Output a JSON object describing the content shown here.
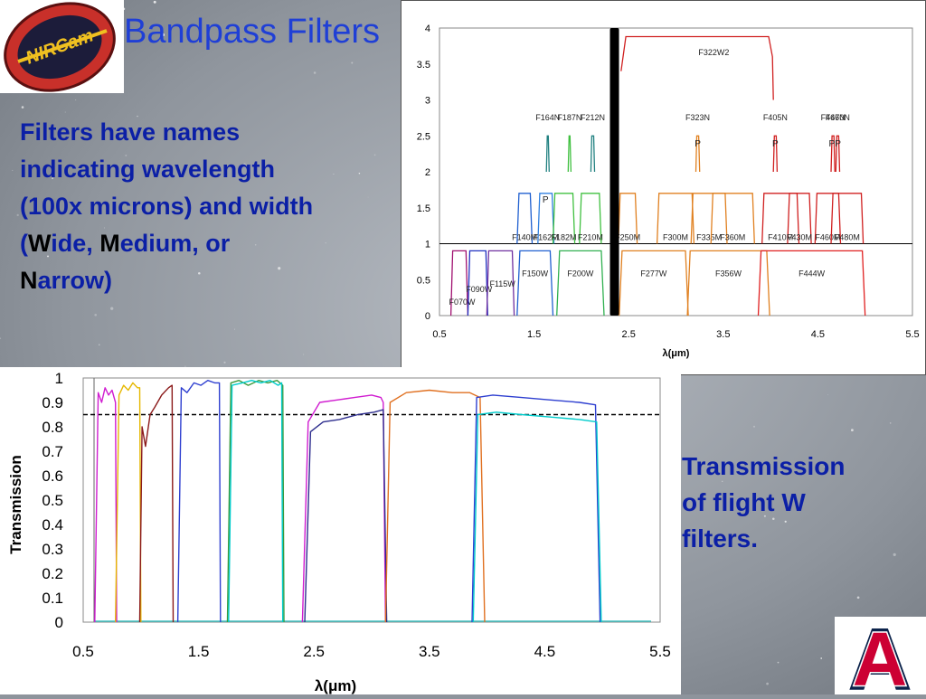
{
  "slide": {
    "title": "Bandpass Filters",
    "desc_lines": [
      "Filters have names",
      "indicating wavelength",
      "(100x microns) and width"
    ],
    "desc_w_key": "W",
    "desc_w_rest": "ide, ",
    "desc_m_key": "M",
    "desc_m_rest": "edium, or",
    "desc_n_key": "N",
    "desc_n_rest": "arrow)",
    "caption_lines": [
      "Transmission",
      "of flight W",
      "filters."
    ],
    "logo_text": "NIRCam",
    "ua_mark": "A"
  },
  "colors": {
    "title": "#1f3fd6",
    "text": "#0b1fa6",
    "ua_blue": "#0c234b",
    "ua_red": "#cc0033"
  },
  "chart_data": [
    {
      "type": "line",
      "title": "",
      "xlabel": "λ(μm)",
      "ylabel": "",
      "xlim": [
        0.5,
        5.5
      ],
      "ylim": [
        0,
        4
      ],
      "x_ticks": [
        "0.5",
        "1.5",
        "2.5",
        "3.5",
        "4.5",
        "5.5"
      ],
      "y_ticks": [
        "0",
        "0.5",
        "1",
        "1.5",
        "2",
        "2.5",
        "3",
        "3.5",
        "4"
      ],
      "reference_line_y": 1,
      "marker_x": 2.35,
      "series": [
        {
          "name": "F070W",
          "x": [
            0.62,
            0.64,
            0.78,
            0.8
          ],
          "y": [
            0,
            0.9,
            0.9,
            0
          ]
        },
        {
          "name": "F090W",
          "x": [
            0.8,
            0.82,
            0.99,
            1.01
          ],
          "y": [
            0,
            0.9,
            0.9,
            0
          ]
        },
        {
          "name": "F115W",
          "x": [
            1.0,
            1.02,
            1.27,
            1.29
          ],
          "y": [
            0,
            0.9,
            0.9,
            0
          ]
        },
        {
          "name": "F150W",
          "x": [
            1.32,
            1.35,
            1.67,
            1.7
          ],
          "y": [
            0,
            0.9,
            0.9,
            0
          ]
        },
        {
          "name": "F200W",
          "x": [
            1.74,
            1.77,
            2.21,
            2.24
          ],
          "y": [
            0,
            0.9,
            0.9,
            0
          ]
        },
        {
          "name": "F277W",
          "x": [
            2.4,
            2.43,
            3.1,
            3.13
          ],
          "y": [
            0,
            0.9,
            0.9,
            0
          ]
        },
        {
          "name": "F356W",
          "x": [
            3.12,
            3.15,
            3.96,
            3.99
          ],
          "y": [
            0,
            0.9,
            0.9,
            0
          ]
        },
        {
          "name": "F444W",
          "x": [
            3.87,
            3.9,
            4.97,
            5.0
          ],
          "y": [
            0,
            0.9,
            0.9,
            0
          ]
        },
        {
          "name": "F140M",
          "x": [
            1.32,
            1.34,
            1.46,
            1.48
          ],
          "y": [
            1,
            1.7,
            1.7,
            1
          ]
        },
        {
          "name": "F162M",
          "x": [
            1.54,
            1.56,
            1.69,
            1.71
          ],
          "y": [
            1,
            1.7,
            1.7,
            1
          ]
        },
        {
          "name": "F182M",
          "x": [
            1.7,
            1.72,
            1.91,
            1.93
          ],
          "y": [
            1,
            1.7,
            1.7,
            1
          ]
        },
        {
          "name": "F210M",
          "x": [
            1.98,
            2.0,
            2.19,
            2.21
          ],
          "y": [
            1,
            1.7,
            1.7,
            1
          ]
        },
        {
          "name": "F250M",
          "x": [
            2.39,
            2.41,
            2.57,
            2.59
          ],
          "y": [
            1,
            1.7,
            1.7,
            1
          ]
        },
        {
          "name": "F300M",
          "x": [
            2.8,
            2.82,
            3.17,
            3.19
          ],
          "y": [
            1,
            1.7,
            1.7,
            1
          ]
        },
        {
          "name": "F335M",
          "x": [
            3.16,
            3.18,
            3.52,
            3.54
          ],
          "y": [
            1,
            1.7,
            1.7,
            1
          ]
        },
        {
          "name": "F360M",
          "x": [
            3.37,
            3.39,
            3.81,
            3.83
          ],
          "y": [
            1,
            1.7,
            1.7,
            1
          ]
        },
        {
          "name": "F410M",
          "x": [
            3.91,
            3.93,
            4.28,
            4.3
          ],
          "y": [
            1,
            1.7,
            1.7,
            1
          ]
        },
        {
          "name": "F430M",
          "x": [
            4.18,
            4.2,
            4.41,
            4.43
          ],
          "y": [
            1,
            1.7,
            1.7,
            1
          ]
        },
        {
          "name": "F460M",
          "x": [
            4.47,
            4.49,
            4.72,
            4.74
          ],
          "y": [
            1,
            1.7,
            1.7,
            1
          ]
        },
        {
          "name": "F480M",
          "x": [
            4.64,
            4.66,
            4.96,
            4.98
          ],
          "y": [
            1,
            1.7,
            1.7,
            1
          ]
        },
        {
          "name": "F164N",
          "x": [
            1.63,
            1.64,
            1.65,
            1.66
          ],
          "y": [
            2,
            2.5,
            2.5,
            2
          ]
        },
        {
          "name": "F187N",
          "x": [
            1.86,
            1.87,
            1.88,
            1.89
          ],
          "y": [
            2,
            2.5,
            2.5,
            2
          ]
        },
        {
          "name": "F212N",
          "x": [
            2.1,
            2.11,
            2.13,
            2.14
          ],
          "y": [
            2,
            2.5,
            2.5,
            2
          ]
        },
        {
          "name": "F323N",
          "x": [
            3.21,
            3.22,
            3.24,
            3.25
          ],
          "y": [
            2,
            2.5,
            2.5,
            2
          ]
        },
        {
          "name": "F405N",
          "x": [
            4.03,
            4.04,
            4.06,
            4.07
          ],
          "y": [
            2,
            2.5,
            2.5,
            2
          ]
        },
        {
          "name": "F466N",
          "x": [
            4.64,
            4.65,
            4.67,
            4.68
          ],
          "y": [
            2,
            2.5,
            2.5,
            2
          ]
        },
        {
          "name": "F470N",
          "x": [
            4.69,
            4.7,
            4.72,
            4.73
          ],
          "y": [
            2,
            2.5,
            2.5,
            2
          ]
        },
        {
          "name": "F322W2",
          "x": [
            2.42,
            2.47,
            3.98,
            4.02,
            4.03
          ],
          "y": [
            3.4,
            3.88,
            3.88,
            3.6,
            3
          ]
        }
      ],
      "p_labels": [
        {
          "text": "P",
          "x": 1.62,
          "y": 1.57
        },
        {
          "text": "P",
          "x": 3.23,
          "y": 2.35
        },
        {
          "text": "P",
          "x": 4.05,
          "y": 2.35
        },
        {
          "text": "PP",
          "x": 4.68,
          "y": 2.35
        }
      ]
    },
    {
      "type": "line",
      "title": "",
      "xlabel": "λ(μm)",
      "ylabel": "Transmission",
      "xlim": [
        0.5,
        5.5
      ],
      "ylim": [
        0,
        1
      ],
      "x_ticks": [
        "0.5",
        "1.5",
        "2.5",
        "3.5",
        "4.5",
        "5.5"
      ],
      "y_ticks": [
        "0",
        "0.1",
        "0.2",
        "0.3",
        "0.4",
        "0.5",
        "0.6",
        "0.7",
        "0.8",
        "0.9",
        "1"
      ],
      "reference_line_y": 0.85,
      "series": [
        {
          "color": "#d01cd0",
          "x": [
            0.6,
            0.63,
            0.66,
            0.69,
            0.72,
            0.75,
            0.78,
            0.79
          ],
          "y": [
            0,
            0.94,
            0.9,
            0.96,
            0.93,
            0.95,
            0.9,
            0
          ]
        },
        {
          "color": "#e6b800",
          "x": [
            0.78,
            0.81,
            0.85,
            0.89,
            0.93,
            0.97,
            0.99,
            1.0
          ],
          "y": [
            0,
            0.93,
            0.97,
            0.95,
            0.98,
            0.96,
            0.96,
            0
          ]
        },
        {
          "color": "#8b1a1a",
          "x": [
            0.99,
            1.01,
            1.04,
            1.08,
            1.12,
            1.18,
            1.24,
            1.27,
            1.28
          ],
          "y": [
            0,
            0.8,
            0.72,
            0.85,
            0.88,
            0.93,
            0.96,
            0.97,
            0
          ]
        },
        {
          "color": "#2e3fd0",
          "x": [
            1.32,
            1.35,
            1.4,
            1.46,
            1.52,
            1.58,
            1.64,
            1.68,
            1.69
          ],
          "y": [
            0,
            0.96,
            0.94,
            0.98,
            0.97,
            0.99,
            0.98,
            0.98,
            0
          ]
        },
        {
          "color": "#3c9a3c",
          "x": [
            1.75,
            1.78,
            1.85,
            1.93,
            2.02,
            2.1,
            2.18,
            2.23,
            2.24
          ],
          "y": [
            0,
            0.98,
            0.99,
            0.97,
            0.99,
            0.98,
            0.99,
            0.97,
            0
          ]
        },
        {
          "color": "#00cccc",
          "x": [
            1.76,
            1.79,
            1.88,
            1.96,
            2.04,
            2.12,
            2.19,
            2.22,
            2.23
          ],
          "y": [
            0,
            0.97,
            0.98,
            0.99,
            0.98,
            0.99,
            0.97,
            0.98,
            0
          ]
        },
        {
          "color": "#d01cd0",
          "x": [
            2.4,
            2.45,
            2.55,
            2.7,
            2.85,
            3.0,
            3.08,
            3.1,
            3.12
          ],
          "y": [
            0,
            0.82,
            0.9,
            0.91,
            0.92,
            0.93,
            0.92,
            0.9,
            0
          ]
        },
        {
          "color": "#2e2e8e",
          "x": [
            2.42,
            2.47,
            2.58,
            2.72,
            2.88,
            3.02,
            3.1,
            3.13
          ],
          "y": [
            0,
            0.78,
            0.82,
            0.83,
            0.85,
            0.86,
            0.87,
            0
          ]
        },
        {
          "color": "#e07020",
          "x": [
            3.12,
            3.16,
            3.3,
            3.5,
            3.7,
            3.85,
            3.94,
            3.98
          ],
          "y": [
            0,
            0.9,
            0.94,
            0.95,
            0.94,
            0.94,
            0.92,
            0
          ]
        },
        {
          "color": "#2e3fd0",
          "x": [
            3.87,
            3.91,
            4.05,
            4.3,
            4.55,
            4.8,
            4.94,
            4.98
          ],
          "y": [
            0,
            0.92,
            0.93,
            0.92,
            0.91,
            0.9,
            0.89,
            0
          ]
        },
        {
          "color": "#00cccc",
          "x": [
            3.88,
            3.92,
            4.08,
            4.3,
            4.55,
            4.8,
            4.95,
            4.99
          ],
          "y": [
            0,
            0.85,
            0.86,
            0.85,
            0.84,
            0.83,
            0.82,
            0
          ]
        }
      ]
    }
  ]
}
